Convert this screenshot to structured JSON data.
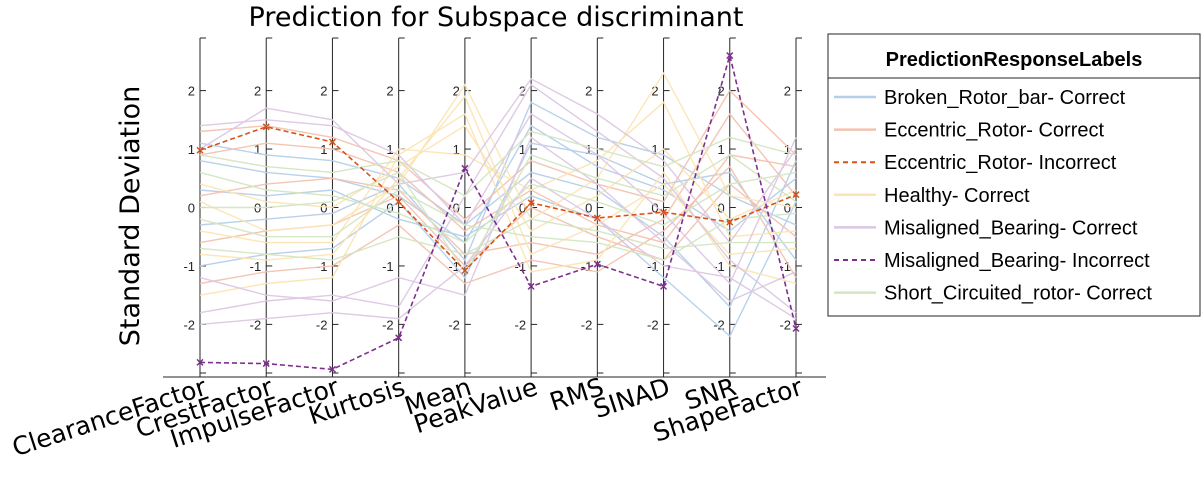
{
  "chart_data": {
    "type": "parallel-coordinates",
    "title": "Prediction for Subspace discriminant",
    "ylabel": "Standard Deviation",
    "axes": [
      "ClearanceFactor",
      "CrestFactor",
      "ImpulseFactor",
      "Kurtosis",
      "Mean",
      "PeakValue",
      "RMS",
      "SINAD",
      "SNR",
      "ShapeFactor"
    ],
    "ylim": [
      -2.9,
      2.9
    ],
    "yticks": [
      -2,
      -1,
      0,
      1,
      2
    ],
    "legend": {
      "title": "PredictionResponseLabels",
      "placement": "outside-right-top"
    },
    "series": [
      {
        "name": "Broken_Rotor_bar- Correct",
        "color": "#b5cfe9",
        "style": "solid",
        "marker": "none",
        "lines": [
          [
            0.8,
            0.6,
            0.5,
            0.2,
            -0.6,
            1.4,
            0.7,
            0.3,
            -0.4,
            0.5
          ],
          [
            -0.3,
            -0.2,
            -0.1,
            0.4,
            -0.9,
            1.8,
            1.2,
            0.9,
            0.2,
            -0.3
          ],
          [
            1.1,
            0.9,
            0.8,
            0.5,
            -0.3,
            0.6,
            0.3,
            -0.5,
            -1.7,
            0.8
          ],
          [
            -1.0,
            -0.8,
            -0.7,
            0.1,
            -1.2,
            1.1,
            0.9,
            0.4,
            0.6,
            -0.9
          ],
          [
            0.3,
            0.2,
            0.3,
            -0.2,
            -0.5,
            0.2,
            -0.2,
            -1.2,
            -2.2,
            0.1
          ]
        ]
      },
      {
        "name": "Eccentric_Rotor- Correct",
        "color": "#f3c2b0",
        "style": "solid",
        "marker": "none",
        "lines": [
          [
            0.9,
            1.1,
            1.0,
            0.6,
            -0.4,
            0.3,
            -0.3,
            -0.6,
            0.9,
            0.7
          ],
          [
            0.2,
            0.4,
            0.5,
            0.3,
            -0.8,
            -0.6,
            -0.8,
            -0.2,
            1.6,
            0.2
          ],
          [
            -0.6,
            -0.4,
            -0.3,
            0.2,
            -1.0,
            0.0,
            -0.5,
            -0.9,
            0.4,
            -0.5
          ],
          [
            1.3,
            1.4,
            1.2,
            0.8,
            -0.2,
            0.8,
            0.4,
            0.1,
            2.0,
            0.9
          ],
          [
            -1.3,
            -1.1,
            -1.0,
            -0.3,
            -1.3,
            -0.9,
            -1.1,
            -0.4,
            0.7,
            -1.2
          ]
        ]
      },
      {
        "name": "Eccentric_Rotor- Incorrect",
        "color": "#d95319",
        "style": "dash",
        "marker": "x",
        "lines": [
          [
            0.98,
            1.38,
            1.12,
            0.1,
            -1.08,
            0.08,
            -0.18,
            -0.08,
            -0.25,
            0.22
          ]
        ]
      },
      {
        "name": "Healthy- Correct",
        "color": "#fce5b4",
        "style": "solid",
        "marker": "none",
        "lines": [
          [
            -0.8,
            -0.9,
            -0.8,
            0.5,
            1.9,
            -0.8,
            -0.3,
            0.4,
            -0.8,
            -0.7
          ],
          [
            0.4,
            0.1,
            0.0,
            0.7,
            1.4,
            -0.4,
            0.2,
            1.0,
            -0.2,
            0.3
          ],
          [
            -1.5,
            -1.3,
            -1.2,
            0.9,
            1.6,
            -1.1,
            -0.9,
            0.6,
            -1.0,
            -1.3
          ],
          [
            0.1,
            -0.4,
            -0.3,
            0.4,
            2.1,
            -0.2,
            0.5,
            2.3,
            0.2,
            0.0
          ],
          [
            -0.4,
            -0.6,
            -0.6,
            1.0,
            0.9,
            0.3,
            0.8,
            1.8,
            -0.5,
            -0.4
          ]
        ]
      },
      {
        "name": "Misaligned_Bearing- Correct",
        "color": "#dcc7e3",
        "style": "solid",
        "marker": "none",
        "lines": [
          [
            -1.8,
            -1.6,
            -1.5,
            -1.7,
            0.2,
            2.1,
            1.3,
            0.5,
            -0.9,
            -1.8
          ],
          [
            1.4,
            1.5,
            1.4,
            0.9,
            -0.3,
            1.6,
            0.9,
            -0.1,
            -1.3,
            1.2
          ],
          [
            -1.2,
            -1.5,
            -1.6,
            -1.2,
            -1.5,
            1.2,
            0.4,
            -0.6,
            -1.6,
            -1.1
          ],
          [
            1.0,
            1.7,
            1.5,
            0.4,
            0.6,
            2.2,
            1.6,
            0.8,
            -0.6,
            1.0
          ],
          [
            -2.0,
            -1.9,
            -1.8,
            -1.9,
            -1.0,
            0.5,
            -0.2,
            -1.0,
            -1.2,
            -1.9
          ]
        ]
      },
      {
        "name": "Misaligned_Bearing- Incorrect",
        "color": "#7e2f8e",
        "style": "dash",
        "marker": "x",
        "lines": [
          [
            -2.65,
            -2.67,
            -2.77,
            -2.23,
            0.67,
            -1.35,
            -0.97,
            -1.35,
            2.6,
            -2.07
          ]
        ]
      },
      {
        "name": "Short_Circuited_rotor- Correct",
        "color": "#d3e6c2",
        "style": "solid",
        "marker": "none",
        "lines": [
          [
            0.6,
            0.3,
            0.2,
            -0.1,
            -0.6,
            0.4,
            0.1,
            -0.3,
            0.4,
            0.6
          ],
          [
            -0.2,
            -0.5,
            -0.5,
            0.3,
            -0.3,
            -0.5,
            -0.6,
            -0.9,
            -0.2,
            -0.1
          ],
          [
            0.0,
            0.0,
            0.1,
            0.6,
            -1.1,
            0.9,
            0.5,
            0.2,
            0.9,
            0.1
          ],
          [
            -0.7,
            -0.8,
            -0.9,
            -0.5,
            -0.8,
            -0.2,
            -0.4,
            -0.7,
            -0.6,
            -0.6
          ],
          [
            0.9,
            0.7,
            0.6,
            0.8,
            0.2,
            1.3,
            1.0,
            0.7,
            1.2,
            0.9
          ]
        ]
      }
    ]
  }
}
